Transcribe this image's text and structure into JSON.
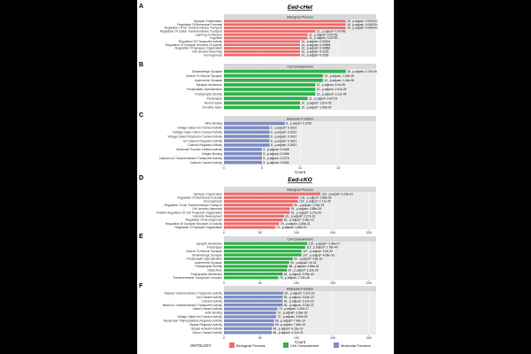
{
  "figure": {
    "sections": [
      {
        "letter": "A",
        "heading": "Eed-cHet"
      },
      {
        "letter": "D",
        "heading": "Eed-cKO"
      }
    ]
  },
  "colors": {
    "Biological Process": "#f16c6c",
    "Cell Compartment": "#2fb34a",
    "Molecular Function": "#7f8fc6",
    "strip": "#d9d9d9",
    "panel_bg": "#ececec",
    "grid": "#ffffff"
  },
  "legend": {
    "title": "ONTOLOGY",
    "items": [
      "Biological Process",
      "Cell Compartment",
      "Molecular Function"
    ]
  },
  "chart_data": [
    {
      "panel": "A",
      "type": "bar",
      "orientation": "horizontal",
      "ontology": "Biological Process",
      "strip_label": "Biological Process",
      "xlim": [
        0,
        20
      ],
      "xticks": [],
      "xlabel": "",
      "categories": [
        "Synapse Organization",
        "Regulation Of Membrane Potential",
        "Regulation Of Ion Transmembrane Transport",
        "Regulation Of Cation Transmembrane Transport",
        "Learning Or Memory",
        "Cognition",
        "Regulation Of Transporter Activity",
        "Regulation Of Synapse Structure Or Activity",
        "Regulation Of Synapse Organization",
        "Cell Junction Assembly",
        "Axonogenesis"
      ],
      "values": [
        16,
        16,
        16,
        12,
        11,
        11,
        10,
        10,
        10,
        10,
        10
      ],
      "labels": [
        "16 , p.adjust= 0.000442",
        "16 , p.adjust= 0.000334",
        "16 , p.adjust= 0.000442",
        "12 , p.adjust= 0.00786",
        "11 , p.adjust= 0.00753",
        "11 , p.adjust= 0.00753",
        "10 , p.adjust= 0.00164",
        "10 , p.adjust= 0.00896",
        "10 , p.adjust= 0.00896",
        "10 , p.adjust= 0.0225",
        "10 , p.adjust= 0.0262"
      ]
    },
    {
      "panel": "B",
      "type": "bar",
      "orientation": "horizontal",
      "ontology": "Cell Compartment",
      "strip_label": "Cell Compartment",
      "xlim": [
        0,
        20
      ],
      "xticks": [],
      "xlabel": "",
      "categories": [
        "Glutamatergic Synapse",
        "Neuron To Neuron Synapse",
        "Asymmetric Synapse",
        "Synaptic Membrane",
        "Postsynaptic Specialization",
        "Postsynaptic Density",
        "Presynapse",
        "Neuron Spine",
        "Dendritic Spine"
      ],
      "values": [
        16,
        13,
        13,
        12,
        12,
        12,
        11,
        10,
        10
      ],
      "labels": [
        "16 , p.adjust= 1.07e-06",
        "13 , p.adjust= 1.92e-05",
        "13 , p.adjust= 1.18e-05",
        "12 , p.adjust= 3.2e-05",
        "12 , p.adjust= 2.81e-05",
        "12 , p.adjust= 2.21e-05",
        "11 , p.adjust= 0.00721",
        "10 , p.adjust= 1.67e-05",
        "10 , p.adjust= 1.55e-05"
      ]
    },
    {
      "panel": "C",
      "type": "bar",
      "orientation": "horizontal",
      "ontology": "Molecular Function",
      "strip_label": "Molecular Function",
      "xlim": [
        0,
        20
      ],
      "xticks": [
        "0",
        "5",
        "10",
        "15"
      ],
      "xlabel": "Count",
      "categories": [
        "Mhrs Binding",
        "Voltage Gated Ion Channel Activity",
        "Voltage Gated Cation Channel Activity",
        "Voltage Gated Potassium Channel Activity",
        "Ion Channel Regulator Activity",
        "Channel Regulator Activity",
        "Molecular Function Inhibitor Activity",
        "Integrin Binding",
        "Calcium Ion Transmembrane Transporter Activity",
        "Calcium Channel Activity"
      ],
      "values": [
        8,
        6,
        6,
        6,
        6,
        6,
        5,
        5,
        5,
        5
      ],
      "labels": [
        "8 , p.adjust= 0.0150",
        "6 , p.adjust= 0.0321",
        "6 , p.adjust= 0.0321",
        "6 , p.adjust= 0.0167",
        "6 , p.adjust= 0.0167",
        "6 , p.adjust= 0.0167",
        "5 , p.adjust= 0.0408",
        "5 , p.adjust= 0.0456",
        "5 , p.adjust= 0.0379",
        "5 , p.adjust= 0.0282"
      ]
    },
    {
      "panel": "D",
      "type": "bar",
      "orientation": "horizontal",
      "ontology": "Biological Process",
      "strip_label": "Biological Process",
      "xlim": [
        0,
        210
      ],
      "xticks": [
        "0",
        "50",
        "100",
        "150",
        "200"
      ],
      "xlabel": "",
      "categories": [
        "Synapse Organization",
        "Regulation Of Membrane Potential",
        "Axonogenesis",
        "Regulation Of Ion Transmembrane Transport",
        "Cell Junction Assembly",
        "Positive Regulation Of Cell Projection Organization",
        "Dendrite Development",
        "Regulation Of Neurogenesis",
        "Regulation Of Synapse Structure Or Activity",
        "Regulation Of Synapse Organization"
      ],
      "values": [
        133,
        103,
        102,
        95,
        91,
        91,
        83,
        81,
        76,
        71
      ],
      "labels": [
        "133 , p.adjust= 6.18e-61",
        "103 , p.adjust= 2.89e-33",
        "102 , p.adjust= 2.71e-30",
        "95 , p.adjust= 1.23e-29",
        "91 , p.adjust= 2.85e-28",
        "91 , p.adjust= 3.17e-29",
        "83 , p.adjust= 2.27e-31",
        "81 , p.adjust= 3.46e-19",
        "76 , p.adjust= 1.85e-31",
        "71 , p.adjust= 1.68e-31"
      ]
    },
    {
      "panel": "E",
      "type": "bar",
      "orientation": "horizontal",
      "ontology": "Cell Compartment",
      "strip_label": "Cell Compartment",
      "xlim": [
        0,
        210
      ],
      "xticks": [
        "0",
        "50",
        "100",
        "150",
        "200"
      ],
      "xlabel": "",
      "categories": [
        "Synaptic Membrane",
        "Presynapse",
        "Neuron To Neuron Synapse",
        "Glutamatergic Synapse",
        "Postsynaptic Specialization",
        "Asymmetric Synapse",
        "Postsynaptic Density",
        "Distal Axon",
        "Postsynaptic Membrane",
        "Transmembrane Transporter Complex"
      ],
      "values": [
        115,
        112,
        107,
        107,
        95,
        90,
        88,
        87,
        81,
        75
      ],
      "labels": [
        "115 , p.adjust= 2.08e-37",
        "112 , p.adjust= 1.76e-40",
        "107 , p.adjust= 5.3e-33",
        "107 , p.adjust= 4.08e-33",
        "95 , p.adjust= 4.6e-32",
        "90 , p.adjust= 1e-32",
        "88 , p.adjust= 4.86e-32",
        "87 , p.adjust= 1.32e-20",
        "81 , p.adjust= 2.05e-44",
        "75 , p.adjust= 7.73e-25"
      ]
    },
    {
      "panel": "F",
      "type": "bar",
      "orientation": "horizontal",
      "ontology": "Molecular Function",
      "strip_label": "Molecular Function",
      "xlim": [
        0,
        210
      ],
      "xticks": [
        "0",
        "50",
        "100",
        "150",
        "200"
      ],
      "xlabel": "Count",
      "categories": [
        "Passive Transmembrane Transporter Activity",
        "Ion Channel Activity",
        "Channel Activity",
        "Metal Ion Transmembrane Transporter Activity",
        "Gated Channel Activity",
        "Actin Binding",
        "Voltage Gated Ion Channel Activity",
        "Nucleoside Triphosphatase Regulator Activity",
        "Gtpase Regulator Activity",
        "Gtpase Activator Activity",
        "Cation Channel Activity"
      ],
      "values": [
        82,
        81,
        81,
        81,
        74,
        72,
        72,
        69,
        69,
        66,
        66
      ],
      "labels": [
        "82 , p.adjust= 1.07e-23",
        "81 , p.adjust= 3.02e-23",
        "81 , p.adjust= 1.07e-22",
        "81 , p.adjust= 3.23e-21",
        "74 , p.adjust= 1.81e-27",
        "72 , p.adjust= 3.66e-18",
        "72 , p.adjust= 3.84e-25",
        "69 , p.adjust= 7.46e-19",
        "69 , p.adjust= 7.46e-19",
        "66 , p.adjust= 4.16e-19",
        "66 , p.adjust= 4.22e-23"
      ]
    }
  ]
}
